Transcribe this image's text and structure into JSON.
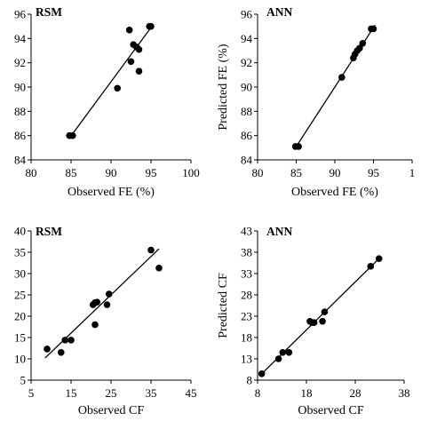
{
  "chart_data": [
    {
      "type": "scatter",
      "title": "RSM",
      "xlabel": "Observed FE (%)",
      "ylabel": "",
      "xlim": [
        80,
        100
      ],
      "ylim": [
        84,
        96
      ],
      "xticks": [
        "80",
        "85",
        "90",
        "95",
        "100"
      ],
      "yticks": [
        "84",
        "86",
        "88",
        "90",
        "92",
        "94",
        "96"
      ],
      "points": {
        "x": [
          84.8,
          85.2,
          90.8,
          92.3,
          92.5,
          92.8,
          93.2,
          93.5,
          93.5,
          94.8,
          95.0
        ],
        "y": [
          86.0,
          86.0,
          89.9,
          94.7,
          92.1,
          93.5,
          93.3,
          93.1,
          91.3,
          95.0,
          95.0
        ]
      },
      "fit_line": {
        "x": [
          84.8,
          95.0
        ],
        "y": [
          85.8,
          94.9
        ]
      }
    },
    {
      "type": "scatter",
      "title": "ANN",
      "xlabel": "Observed FE (%)",
      "ylabel": "Predicted FE (%)",
      "xlim": [
        80,
        100
      ],
      "ylim": [
        84,
        96
      ],
      "xticks": [
        "80",
        "85",
        "90",
        "95",
        "1"
      ],
      "yticks": [
        "84",
        "86",
        "88",
        "90",
        "92",
        "94",
        "96"
      ],
      "points": {
        "x": [
          84.9,
          85.3,
          90.9,
          92.4,
          92.6,
          92.9,
          93.2,
          93.6,
          94.7,
          95.0
        ],
        "y": [
          85.1,
          85.1,
          90.8,
          92.4,
          92.7,
          93.0,
          93.2,
          93.6,
          94.8,
          94.8
        ]
      },
      "fit_line": {
        "x": [
          84.8,
          95.2
        ],
        "y": [
          84.9,
          95.1
        ]
      }
    },
    {
      "type": "scatter",
      "title": "RSM",
      "xlabel": "Observed CF",
      "ylabel": "",
      "xlim": [
        5,
        45
      ],
      "ylim": [
        5,
        40
      ],
      "xticks": [
        "5",
        "15",
        "25",
        "35",
        "45"
      ],
      "yticks": [
        "5",
        "10",
        "15",
        "20",
        "25",
        "30",
        "35",
        "40"
      ],
      "points": {
        "x": [
          9.0,
          12.5,
          13.5,
          15.0,
          20.5,
          21.0,
          21.5,
          21.0,
          24.0,
          24.5,
          35.0,
          37.0
        ],
        "y": [
          12.3,
          11.5,
          14.4,
          14.4,
          22.7,
          23.2,
          23.3,
          18.0,
          22.7,
          25.2,
          35.5,
          31.3
        ]
      },
      "fit_line": {
        "x": [
          8.5,
          37.0
        ],
        "y": [
          10.2,
          35.8
        ]
      }
    },
    {
      "type": "scatter",
      "title": "ANN",
      "xlabel": "Observed CF",
      "ylabel": "Predicted CF",
      "xlim": [
        8,
        43
      ],
      "ylim": [
        8,
        43
      ],
      "xticks": [
        "8",
        "18",
        "28",
        "38"
      ],
      "yticks": [
        "8",
        "13",
        "18",
        "23",
        "28",
        "33",
        "38",
        "43"
      ],
      "points": {
        "x": [
          9.0,
          13.0,
          14.0,
          15.5,
          20.5,
          21.0,
          21.5,
          23.5,
          24.0,
          35.0,
          37.0
        ],
        "y": [
          9.5,
          13.0,
          14.5,
          14.5,
          21.8,
          21.5,
          21.5,
          21.8,
          24.0,
          34.7,
          36.5
        ]
      },
      "fit_line": {
        "x": [
          9.0,
          37.0
        ],
        "y": [
          9.5,
          36.5
        ]
      }
    }
  ]
}
